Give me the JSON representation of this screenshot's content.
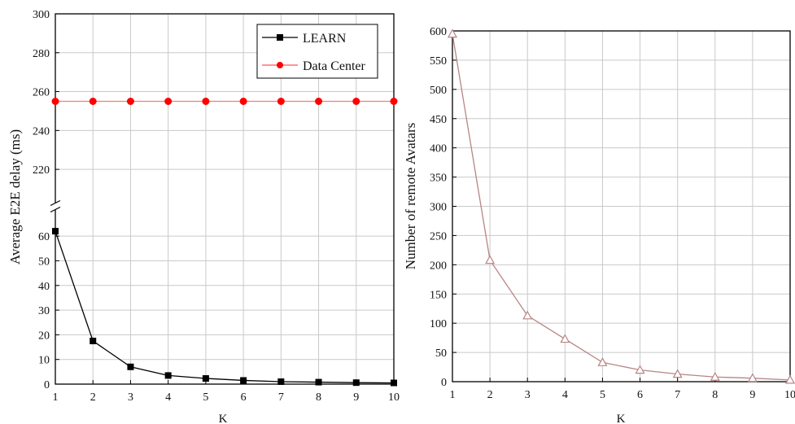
{
  "chart_data": [
    {
      "type": "line",
      "title": "",
      "xlabel": "K",
      "ylabel": "Average E2E delay (ms)",
      "x": [
        1,
        2,
        3,
        4,
        5,
        6,
        7,
        8,
        9,
        10
      ],
      "xticks": [
        "1",
        "2",
        "3",
        "4",
        "5",
        "6",
        "7",
        "8",
        "9",
        "10"
      ],
      "y_axis_break": true,
      "ylim_lower": [
        0,
        65
      ],
      "ylim_upper": [
        210,
        300
      ],
      "yticks_lower": [
        "0",
        "10",
        "20",
        "30",
        "40",
        "50",
        "60"
      ],
      "yticks_upper": [
        "220",
        "240",
        "260",
        "280",
        "300"
      ],
      "grid": true,
      "legend": "top-right",
      "series": [
        {
          "name": "LEARN",
          "marker": "filled-square",
          "color": "#000000",
          "values": [
            62,
            17.5,
            7,
            3.5,
            2.3,
            1.5,
            1,
            0.8,
            0.6,
            0.5
          ]
        },
        {
          "name": "Data Center",
          "marker": "filled-circle",
          "color": "#ff0000",
          "values": [
            255,
            255,
            255,
            255,
            255,
            255,
            255,
            255,
            255,
            255
          ]
        }
      ]
    },
    {
      "type": "line",
      "title": "",
      "xlabel": "K",
      "ylabel": "Number of remote Avatars",
      "x": [
        1,
        2,
        3,
        4,
        5,
        6,
        7,
        8,
        9,
        10
      ],
      "xticks": [
        "1",
        "2",
        "3",
        "4",
        "5",
        "6",
        "7",
        "8",
        "9",
        "10"
      ],
      "ylim": [
        0,
        600
      ],
      "yticks": [
        "0",
        "50",
        "100",
        "150",
        "200",
        "250",
        "300",
        "350",
        "400",
        "450",
        "500",
        "550",
        "600"
      ],
      "grid": true,
      "series": [
        {
          "marker": "open-triangle",
          "color": "#b88585",
          "values": [
            595,
            208,
            113,
            73,
            33,
            20,
            13,
            8,
            6,
            3
          ]
        }
      ]
    }
  ]
}
